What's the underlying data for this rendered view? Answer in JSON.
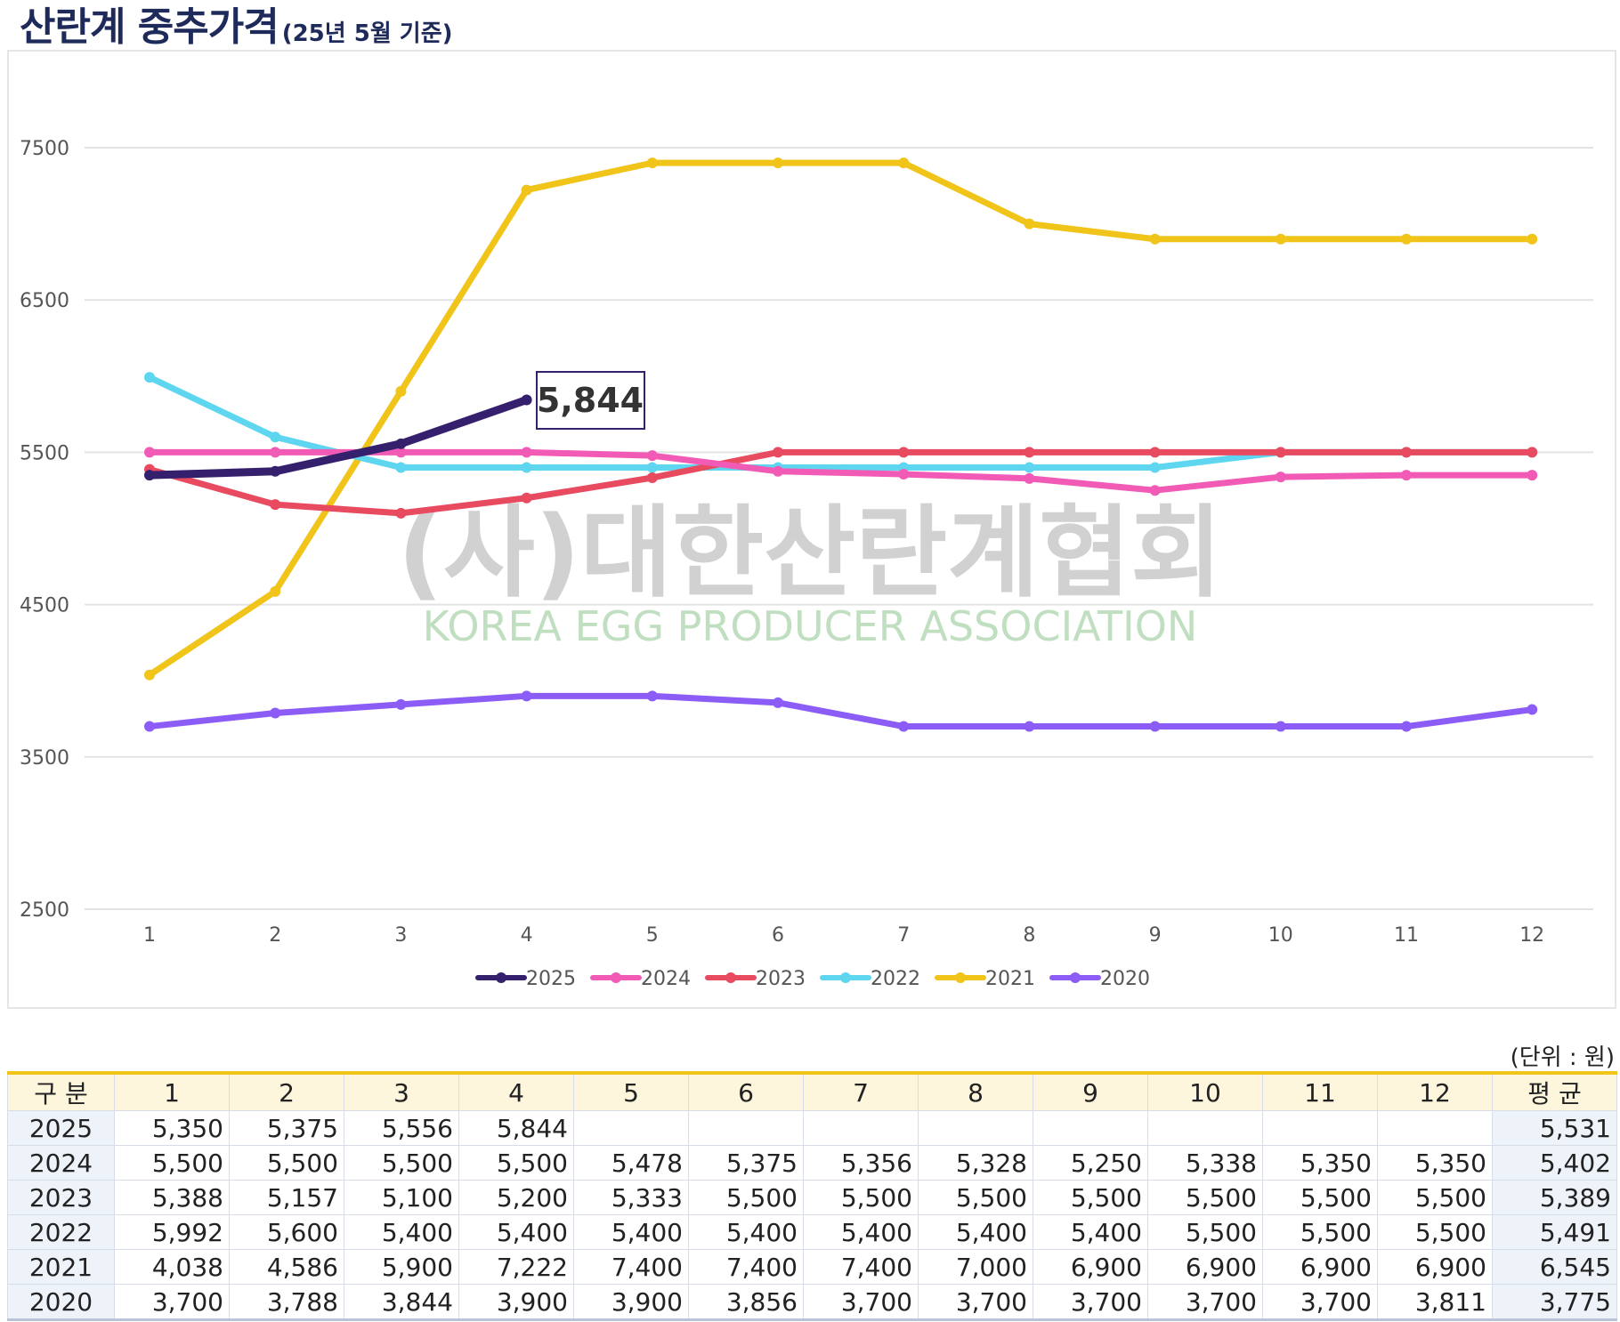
{
  "title": {
    "main": "산란계 중추가격",
    "sub": "(25년 5월 기준)"
  },
  "watermark": {
    "korean": "(사)대한산란계협회",
    "english": "KOREA EGG PRODUCER ASSOCIATION"
  },
  "callout": {
    "text": "5,844",
    "series": "2025",
    "month": 4
  },
  "unit_note": "(단위 : 원)",
  "chart_data": {
    "type": "line",
    "title": "산란계 중추가격",
    "x": [
      1,
      2,
      3,
      4,
      5,
      6,
      7,
      8,
      9,
      10,
      11,
      12
    ],
    "ylim": [
      2500,
      7500
    ],
    "yticks": [
      7500,
      6500,
      5500,
      4500,
      3500,
      2500
    ],
    "grid": true,
    "legend_position": "bottom",
    "series": [
      {
        "name": "2025",
        "color": "#35206e",
        "values": [
          5350,
          5375,
          5556,
          5844,
          null,
          null,
          null,
          null,
          null,
          null,
          null,
          null
        ]
      },
      {
        "name": "2024",
        "color": "#f15bb5",
        "values": [
          5500,
          5500,
          5500,
          5500,
          5478,
          5375,
          5356,
          5328,
          5250,
          5338,
          5350,
          5350
        ]
      },
      {
        "name": "2023",
        "color": "#e84a5f",
        "values": [
          5388,
          5157,
          5100,
          5200,
          5333,
          5500,
          5500,
          5500,
          5500,
          5500,
          5500,
          5500
        ]
      },
      {
        "name": "2022",
        "color": "#5ed6f0",
        "values": [
          5992,
          5600,
          5400,
          5400,
          5400,
          5400,
          5400,
          5400,
          5400,
          5500,
          5500,
          5500
        ]
      },
      {
        "name": "2021",
        "color": "#f0c419",
        "values": [
          4038,
          4586,
          5900,
          7222,
          7400,
          7400,
          7400,
          7000,
          6900,
          6900,
          6900,
          6900
        ]
      },
      {
        "name": "2020",
        "color": "#8b5cf6",
        "values": [
          3700,
          3788,
          3844,
          3900,
          3900,
          3856,
          3700,
          3700,
          3700,
          3700,
          3700,
          3811
        ]
      }
    ]
  },
  "table": {
    "headers": [
      "구 분",
      "1",
      "2",
      "3",
      "4",
      "5",
      "6",
      "7",
      "8",
      "9",
      "10",
      "11",
      "12",
      "평 균"
    ],
    "rows": [
      [
        "2025",
        "5,350",
        "5,375",
        "5,556",
        "5,844",
        "",
        "",
        "",
        "",
        "",
        "",
        "",
        "",
        "5,531"
      ],
      [
        "2024",
        "5,500",
        "5,500",
        "5,500",
        "5,500",
        "5,478",
        "5,375",
        "5,356",
        "5,328",
        "5,250",
        "5,338",
        "5,350",
        "5,350",
        "5,402"
      ],
      [
        "2023",
        "5,388",
        "5,157",
        "5,100",
        "5,200",
        "5,333",
        "5,500",
        "5,500",
        "5,500",
        "5,500",
        "5,500",
        "5,500",
        "5,500",
        "5,389"
      ],
      [
        "2022",
        "5,992",
        "5,600",
        "5,400",
        "5,400",
        "5,400",
        "5,400",
        "5,400",
        "5,400",
        "5,400",
        "5,500",
        "5,500",
        "5,500",
        "5,491"
      ],
      [
        "2021",
        "4,038",
        "4,586",
        "5,900",
        "7,222",
        "7,400",
        "7,400",
        "7,400",
        "7,000",
        "6,900",
        "6,900",
        "6,900",
        "6,900",
        "6,545"
      ],
      [
        "2020",
        "3,700",
        "3,788",
        "3,844",
        "3,900",
        "3,900",
        "3,856",
        "3,700",
        "3,700",
        "3,700",
        "3,700",
        "3,700",
        "3,811",
        "3,775"
      ]
    ]
  }
}
